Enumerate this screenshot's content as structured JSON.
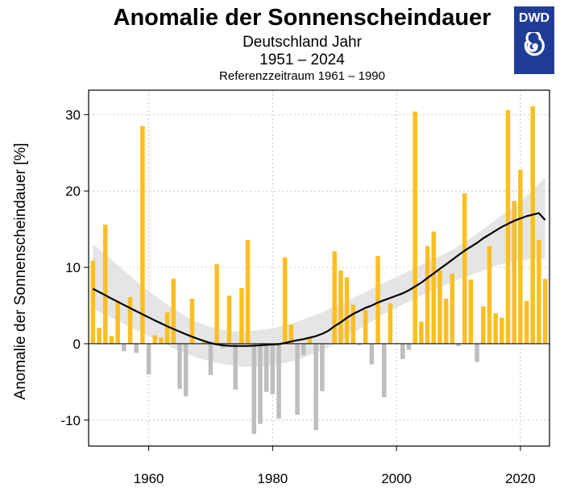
{
  "header": {
    "title": "Anomalie der Sonnenscheindauer",
    "subtitle": "Deutschland Jahr",
    "period": "1951 – 2024",
    "reference": "Referenzzeitraum 1961 – 1990"
  },
  "logo": {
    "text": "DWD",
    "icon": "dwd-swirl-icon",
    "background": "#1f3c96"
  },
  "colors": {
    "positive": "#fbbf24",
    "negative": "#bebebe",
    "trend": "#000000",
    "band": "#e0e0e0"
  },
  "chart_data": {
    "type": "bar",
    "title": "Anomalie der Sonnenscheindauer",
    "ylabel": "Anomalie der Sonnenscheindauer [%]",
    "xlabel": "",
    "xlim": [
      1950.3,
      2024.7
    ],
    "ylim": [
      -13.4,
      33.2
    ],
    "xticks": [
      1960,
      1980,
      2000,
      2020
    ],
    "yticks": [
      -10,
      0,
      10,
      20,
      30
    ],
    "ytick_labels": [
      "-10",
      "0",
      "10",
      "20",
      "30"
    ],
    "grid": true,
    "x": [
      1951,
      1952,
      1953,
      1954,
      1955,
      1956,
      1957,
      1958,
      1959,
      1960,
      1961,
      1962,
      1963,
      1964,
      1965,
      1966,
      1967,
      1968,
      1969,
      1970,
      1971,
      1972,
      1973,
      1974,
      1975,
      1976,
      1977,
      1978,
      1979,
      1980,
      1981,
      1982,
      1983,
      1984,
      1985,
      1986,
      1987,
      1988,
      1989,
      1990,
      1991,
      1992,
      1993,
      1994,
      1995,
      1996,
      1997,
      1998,
      1999,
      2000,
      2001,
      2002,
      2003,
      2004,
      2005,
      2006,
      2007,
      2008,
      2009,
      2010,
      2011,
      2012,
      2013,
      2014,
      2015,
      2016,
      2017,
      2018,
      2019,
      2020,
      2021,
      2022,
      2023,
      2024
    ],
    "values": [
      10.9,
      2.1,
      15.6,
      1.0,
      5.6,
      -1.0,
      6.1,
      -1.2,
      28.5,
      -4.0,
      1.1,
      0.8,
      4.1,
      8.5,
      -5.9,
      -6.9,
      5.9,
      0.0,
      0.3,
      -4.1,
      10.4,
      -0.6,
      6.3,
      -6.0,
      7.3,
      13.6,
      -11.8,
      -10.5,
      -6.3,
      -6.6,
      -9.8,
      11.3,
      2.5,
      -9.3,
      -1.5,
      0.7,
      -11.3,
      -6.2,
      0.0,
      12.1,
      9.6,
      8.7,
      5.1,
      -0.2,
      4.4,
      -2.7,
      11.5,
      -7.0,
      5.3,
      0.1,
      -2.0,
      -0.8,
      30.4,
      2.9,
      12.8,
      14.7,
      9.6,
      5.9,
      9.2,
      -0.3,
      19.7,
      8.4,
      -2.4,
      4.9,
      12.8,
      4.0,
      3.4,
      30.6,
      18.7,
      22.8,
      5.6,
      31.1,
      13.6,
      8.5
    ],
    "trend": [
      7.2,
      6.77,
      6.35,
      5.92,
      5.5,
      5.08,
      4.67,
      4.26,
      3.85,
      3.45,
      3.05,
      2.67,
      2.29,
      1.93,
      1.58,
      1.24,
      0.92,
      0.62,
      0.34,
      0.09,
      -0.1,
      -0.2,
      -0.27,
      -0.3,
      -0.3,
      -0.28,
      -0.25,
      -0.2,
      -0.15,
      -0.1,
      -0.05,
      0.1,
      0.3,
      0.45,
      0.6,
      0.8,
      1.0,
      1.3,
      1.7,
      2.3,
      2.8,
      3.4,
      3.9,
      4.3,
      4.7,
      5.0,
      5.4,
      5.7,
      6.0,
      6.3,
      6.6,
      7.0,
      7.5,
      8.0,
      8.6,
      9.2,
      9.8,
      10.4,
      11.0,
      11.6,
      12.2,
      12.7,
      13.2,
      13.8,
      14.3,
      14.8,
      15.3,
      15.7,
      16.1,
      16.4,
      16.7,
      16.9,
      17.1,
      16.2
    ],
    "trend_x": [
      1951,
      1952,
      1953,
      1954,
      1955,
      1956,
      1957,
      1958,
      1959,
      1960,
      1961,
      1962,
      1963,
      1964,
      1965,
      1966,
      1967,
      1968,
      1969,
      1970,
      1971,
      1972,
      1973,
      1974,
      1975,
      1976,
      1977,
      1978,
      1979,
      1980,
      1981,
      1982,
      1983,
      1984,
      1985,
      1986,
      1987,
      1988,
      1989,
      1990,
      1991,
      1992,
      1993,
      1994,
      1995,
      1996,
      1997,
      1998,
      1999,
      2000,
      2001,
      2002,
      2003,
      2004,
      2005,
      2006,
      2007,
      2008,
      2009,
      2010,
      2011,
      2012,
      2013,
      2014,
      2015,
      2016,
      2017,
      2018,
      2019,
      2020,
      2021,
      2022,
      2023,
      2024
    ],
    "band_upper": [
      13.0,
      12.4,
      11.7,
      11.0,
      10.3,
      9.6,
      8.9,
      8.2,
      7.5,
      6.9,
      6.3,
      5.7,
      5.1,
      4.6,
      4.1,
      3.6,
      3.2,
      2.8,
      2.5,
      2.2,
      2.0,
      1.8,
      1.7,
      1.6,
      1.6,
      1.6,
      1.7,
      1.8,
      1.9,
      2.0,
      2.2,
      2.4,
      2.6,
      2.9,
      3.2,
      3.5,
      3.8,
      4.1,
      4.5,
      4.9,
      5.2,
      5.6,
      6.0,
      6.4,
      6.8,
      7.2,
      7.6,
      8.0,
      8.4,
      8.7,
      9.1,
      9.5,
      9.9,
      10.3,
      10.7,
      11.1,
      11.5,
      11.9,
      12.3,
      12.8,
      13.3,
      13.8,
      14.4,
      15.0,
      15.6,
      16.2,
      16.8,
      17.4,
      18.0,
      18.7,
      19.4,
      20.2,
      21.0,
      21.8
    ],
    "band_lower": [
      4.6,
      4.2,
      3.8,
      3.4,
      3.0,
      2.6,
      2.2,
      1.8,
      1.4,
      1.0,
      0.6,
      0.2,
      -0.2,
      -0.6,
      -1.0,
      -1.3,
      -1.6,
      -1.9,
      -2.1,
      -2.3,
      -2.5,
      -2.7,
      -2.8,
      -2.9,
      -3.0,
      -3.0,
      -3.0,
      -3.0,
      -2.9,
      -2.8,
      -2.7,
      -2.5,
      -2.3,
      -2.1,
      -1.8,
      -1.5,
      -1.2,
      -0.9,
      -0.5,
      -0.1,
      0.4,
      0.9,
      1.4,
      1.9,
      2.4,
      2.9,
      3.4,
      3.9,
      4.3,
      4.7,
      5.1,
      5.5,
      5.9,
      6.3,
      6.7,
      7.0,
      7.4,
      7.7,
      8.0,
      8.4,
      8.7,
      9.0,
      9.3,
      9.6,
      9.9,
      10.2,
      10.4,
      10.6,
      10.8,
      10.9,
      11.0,
      11.1,
      11.1,
      11.1
    ]
  }
}
